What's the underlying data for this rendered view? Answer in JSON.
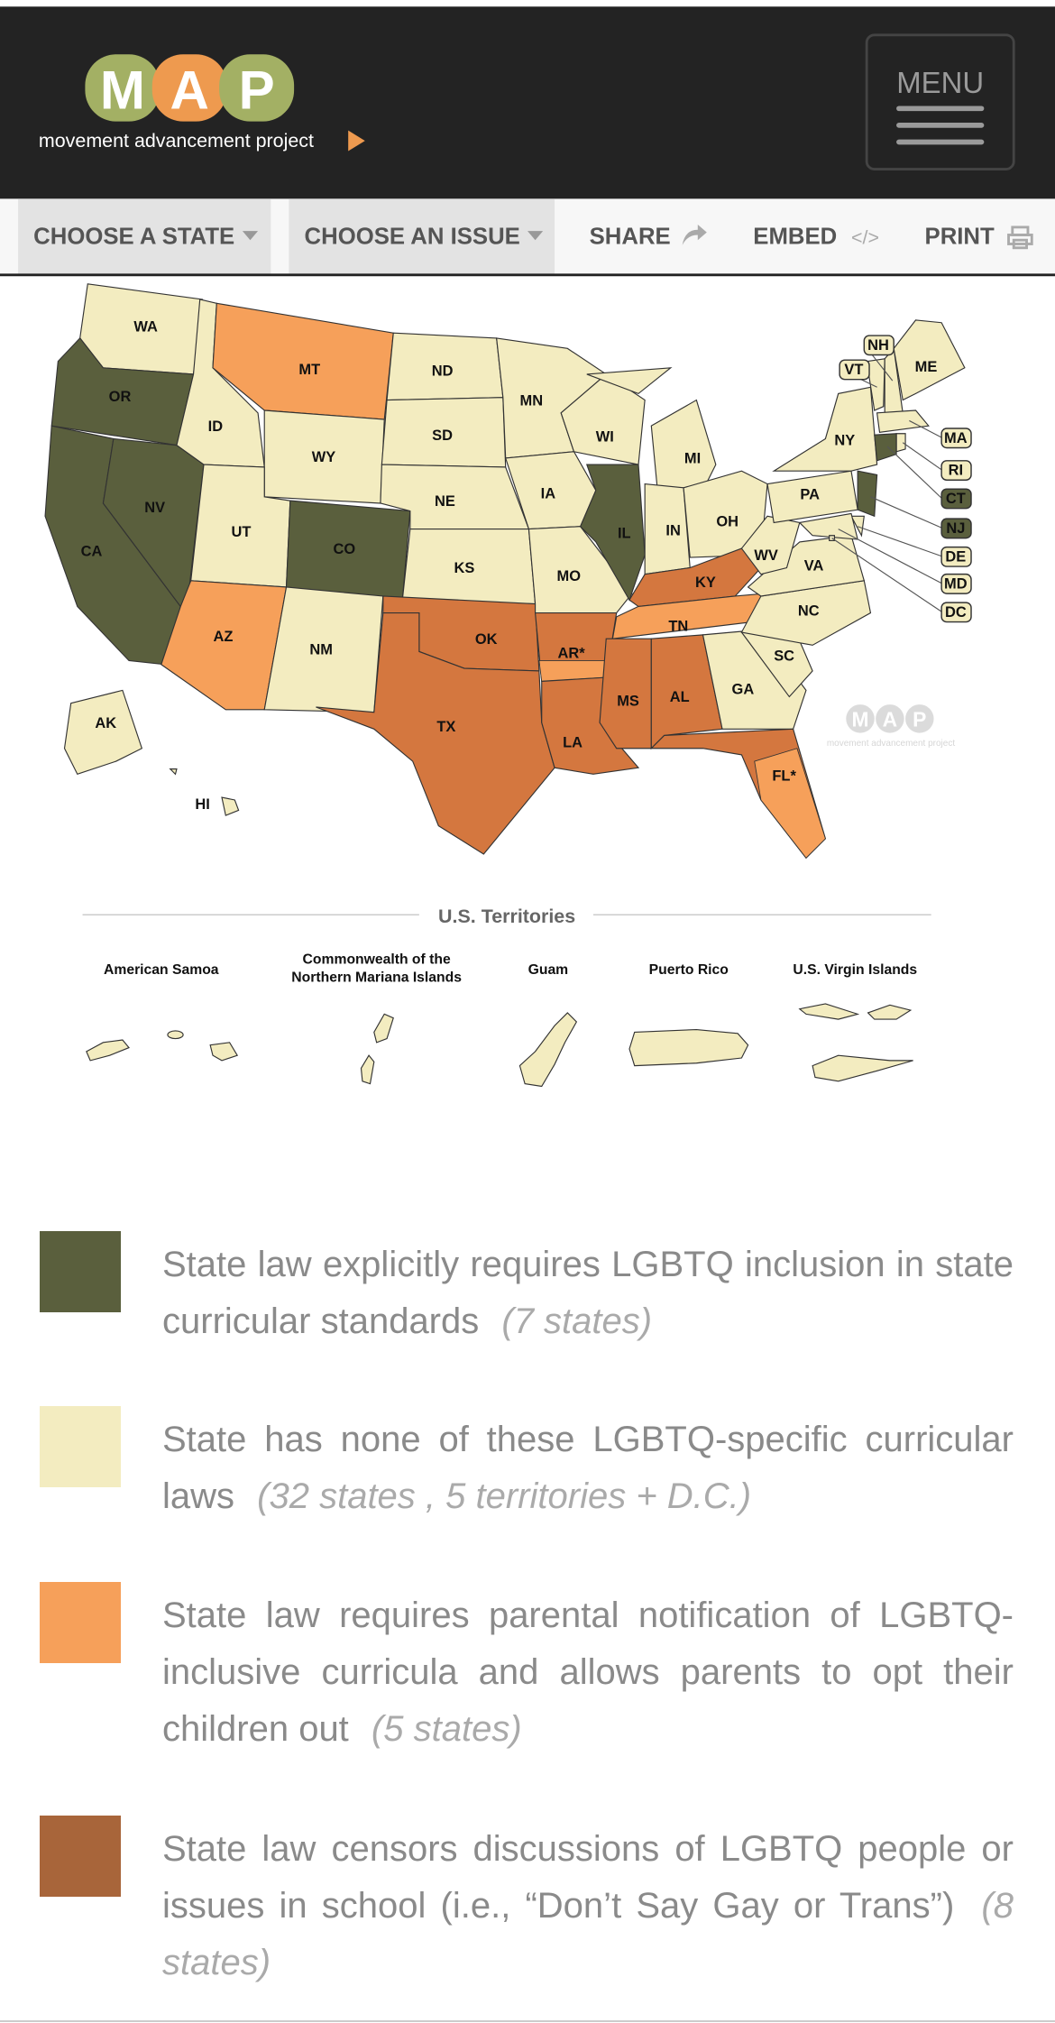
{
  "header": {
    "logo_letters": [
      "M",
      "A",
      "P"
    ],
    "tagline": "movement advancement project",
    "menu": "MENU"
  },
  "nav": [
    "CHOOSE A STATE",
    "CHOOSE AN ISSUE",
    "SHARE",
    "EMBED",
    "PRINT"
  ],
  "map": {
    "states": [
      {
        "label": "WA",
        "groups": [
          1
        ]
      },
      {
        "label": "OR",
        "groups": [
          0
        ]
      },
      {
        "label": "CA",
        "groups": [
          0
        ]
      },
      {
        "label": "NV",
        "groups": [
          0
        ]
      },
      {
        "label": "ID",
        "groups": [
          1
        ]
      },
      {
        "label": "MT",
        "groups": [
          2
        ]
      },
      {
        "label": "WY",
        "groups": [
          1
        ]
      },
      {
        "label": "UT",
        "groups": [
          1
        ]
      },
      {
        "label": "CO",
        "groups": [
          0
        ]
      },
      {
        "label": "AZ",
        "groups": [
          2
        ]
      },
      {
        "label": "NM",
        "groups": [
          1
        ]
      },
      {
        "label": "ND",
        "groups": [
          1
        ]
      },
      {
        "label": "SD",
        "groups": [
          1
        ]
      },
      {
        "label": "NE",
        "groups": [
          1
        ]
      },
      {
        "label": "KS",
        "groups": [
          1
        ]
      },
      {
        "label": "OK",
        "groups": [
          3
        ]
      },
      {
        "label": "TX",
        "groups": [
          3
        ]
      },
      {
        "label": "MN",
        "groups": [
          1
        ]
      },
      {
        "label": "IA",
        "groups": [
          1
        ]
      },
      {
        "label": "MO",
        "groups": [
          1
        ]
      },
      {
        "label": "AR*",
        "groups": [
          3,
          2
        ]
      },
      {
        "label": "LA",
        "groups": [
          3
        ]
      },
      {
        "label": "WI",
        "groups": [
          1
        ]
      },
      {
        "label": "IL",
        "groups": [
          0
        ]
      },
      {
        "label": "MI",
        "groups": [
          1
        ]
      },
      {
        "label": "IN",
        "groups": [
          1
        ]
      },
      {
        "label": "OH",
        "groups": [
          1
        ]
      },
      {
        "label": "KY",
        "groups": [
          3
        ]
      },
      {
        "label": "TN",
        "groups": [
          2
        ]
      },
      {
        "label": "MS",
        "groups": [
          3
        ]
      },
      {
        "label": "AL",
        "groups": [
          3
        ]
      },
      {
        "label": "GA",
        "groups": [
          1
        ]
      },
      {
        "label": "FL*",
        "groups": [
          3,
          2
        ]
      },
      {
        "label": "SC",
        "groups": [
          1
        ]
      },
      {
        "label": "NC",
        "groups": [
          1
        ]
      },
      {
        "label": "VA",
        "groups": [
          1
        ]
      },
      {
        "label": "WV",
        "groups": [
          1
        ]
      },
      {
        "label": "PA",
        "groups": [
          1
        ]
      },
      {
        "label": "NY",
        "groups": [
          1
        ]
      },
      {
        "label": "VT",
        "groups": [
          1
        ]
      },
      {
        "label": "NH",
        "groups": [
          1
        ]
      },
      {
        "label": "ME",
        "groups": [
          1
        ]
      },
      {
        "label": "MA",
        "groups": [
          1
        ]
      },
      {
        "label": "RI",
        "groups": [
          1
        ]
      },
      {
        "label": "CT",
        "groups": [
          0
        ]
      },
      {
        "label": "NJ",
        "groups": [
          0
        ]
      },
      {
        "label": "DE",
        "groups": [
          1
        ]
      },
      {
        "label": "MD",
        "groups": [
          1
        ]
      },
      {
        "label": "DC",
        "groups": [
          1
        ]
      },
      {
        "label": "AK",
        "groups": [
          1
        ]
      },
      {
        "label": "HI",
        "groups": [
          1
        ]
      }
    ],
    "territories_title": "U.S. Territories",
    "territories": [
      [
        "American Samoa"
      ],
      [
        "Commonwealth of the",
        "Northern Mariana Islands"
      ],
      [
        "Guam"
      ],
      [
        "Puerto Rico"
      ],
      [
        "U.S. Virgin Islands"
      ]
    ]
  },
  "legend": [
    {
      "text": "State law explicitly requires LGBTQ inclusion in state curricular standards",
      "count": "(7 states)",
      "color": "#5a5f3d",
      "map_color": "#5a5f3d"
    },
    {
      "text": "State has none of these LGBTQ-specific curricular laws",
      "count": "(32 states , 5 territories + D.C.)",
      "color": "#f3ecc0",
      "map_color": "#f3ecc0"
    },
    {
      "text": "State law requires parental notification of LGBTQ-inclusive curricula and allows parents to opt their children out",
      "count": "(5 states)",
      "color": "#f6a05a",
      "map_color": "#f6a05a"
    },
    {
      "text": "State law censors discussions of LGBTQ people or issues in school (i.e., “Don’t Say Gay or Trans”)",
      "count": "(8 states)",
      "color": "#a8653a",
      "map_color": "#d4773f"
    }
  ]
}
